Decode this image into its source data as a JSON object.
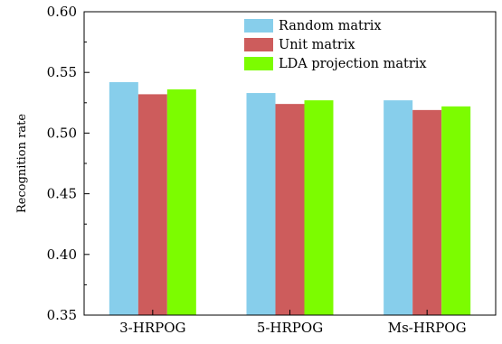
{
  "chart_data": {
    "type": "bar",
    "title": "",
    "xlabel": "",
    "ylabel": "Recognition rate",
    "ylim": [
      0.35,
      0.6
    ],
    "yticks": [
      "0.35",
      "0.40",
      "0.45",
      "0.50",
      "0.55",
      "0.60"
    ],
    "grid": false,
    "legend_position": "top-right",
    "categories": [
      "3-HRPOG",
      "5-HRPOG",
      "Ms-HRPOG"
    ],
    "series": [
      {
        "name": "Random matrix",
        "color": "#87ceeb",
        "values": [
          0.542,
          0.533,
          0.527
        ]
      },
      {
        "name": "Unit matrix",
        "color": "#cd5c5c",
        "values": [
          0.532,
          0.524,
          0.519
        ]
      },
      {
        "name": "LDA projection matrix",
        "color": "#7cfc00",
        "values": [
          0.536,
          0.527,
          0.522
        ]
      }
    ]
  }
}
